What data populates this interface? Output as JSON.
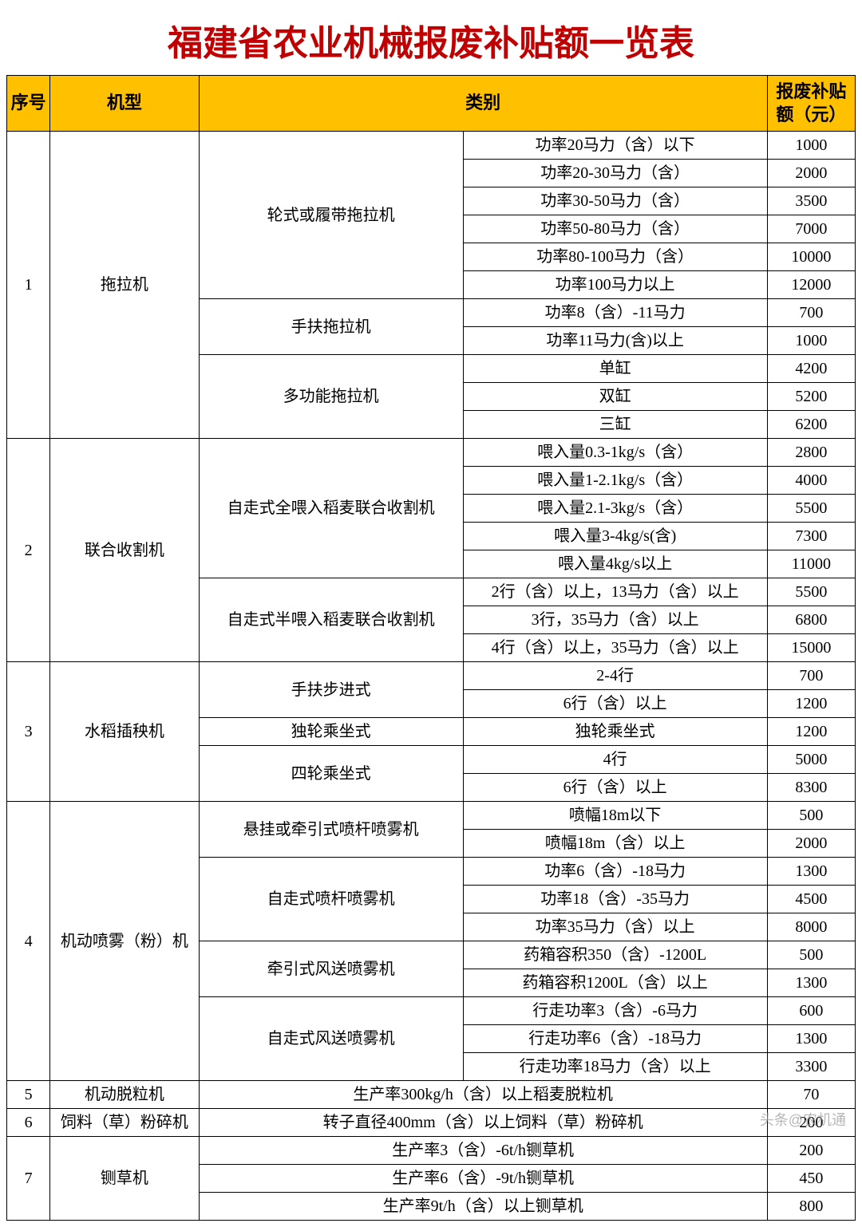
{
  "title": "福建省农业机械报废补贴额一览表",
  "headers": {
    "seq": "序号",
    "model": "机型",
    "category": "类别",
    "amount": "报废补贴额（元）"
  },
  "colors": {
    "title_color": "#c00000",
    "header_bg": "#ffc000",
    "border": "#000000",
    "text": "#000000",
    "background": "#ffffff"
  },
  "font": {
    "title_size": 44,
    "header_size": 22,
    "cell_size": 20,
    "family": "SimSun"
  },
  "groups": [
    {
      "seq": "1",
      "model": "拖拉机",
      "subs": [
        {
          "cat1": "轮式或履带拖拉机",
          "rows": [
            {
              "cat2": "功率20马力（含）以下",
              "amount": "1000"
            },
            {
              "cat2": "功率20-30马力（含）",
              "amount": "2000"
            },
            {
              "cat2": "功率30-50马力（含）",
              "amount": "3500"
            },
            {
              "cat2": "功率50-80马力（含）",
              "amount": "7000"
            },
            {
              "cat2": "功率80-100马力（含）",
              "amount": "10000"
            },
            {
              "cat2": "功率100马力以上",
              "amount": "12000"
            }
          ]
        },
        {
          "cat1": "手扶拖拉机",
          "rows": [
            {
              "cat2": "功率8（含）-11马力",
              "amount": "700"
            },
            {
              "cat2": "功率11马力(含)以上",
              "amount": "1000"
            }
          ]
        },
        {
          "cat1": "多功能拖拉机",
          "rows": [
            {
              "cat2": "单缸",
              "amount": "4200"
            },
            {
              "cat2": "双缸",
              "amount": "5200"
            },
            {
              "cat2": "三缸",
              "amount": "6200"
            }
          ]
        }
      ]
    },
    {
      "seq": "2",
      "model": "联合收割机",
      "subs": [
        {
          "cat1": "自走式全喂入稻麦联合收割机",
          "rows": [
            {
              "cat2": "喂入量0.3-1kg/s（含）",
              "amount": "2800"
            },
            {
              "cat2": "喂入量1-2.1kg/s（含）",
              "amount": "4000"
            },
            {
              "cat2": "喂入量2.1-3kg/s（含）",
              "amount": "5500"
            },
            {
              "cat2": "喂入量3-4kg/s(含)",
              "amount": "7300"
            },
            {
              "cat2": "喂入量4kg/s以上",
              "amount": "11000"
            }
          ]
        },
        {
          "cat1": "自走式半喂入稻麦联合收割机",
          "rows": [
            {
              "cat2": "2行（含）以上，13马力（含）以上",
              "amount": "5500"
            },
            {
              "cat2": "3行，35马力（含）以上",
              "amount": "6800"
            },
            {
              "cat2": "4行（含）以上，35马力（含）以上",
              "amount": "15000"
            }
          ]
        }
      ]
    },
    {
      "seq": "3",
      "model": "水稻插秧机",
      "subs": [
        {
          "cat1": "手扶步进式",
          "rows": [
            {
              "cat2": "2-4行",
              "amount": "700"
            },
            {
              "cat2": "6行（含）以上",
              "amount": "1200"
            }
          ]
        },
        {
          "cat1": "独轮乘坐式",
          "rows": [
            {
              "cat2": "独轮乘坐式",
              "amount": "1200"
            }
          ]
        },
        {
          "cat1": "四轮乘坐式",
          "rows": [
            {
              "cat2": "4行",
              "amount": "5000"
            },
            {
              "cat2": "6行（含）以上",
              "amount": "8300"
            }
          ]
        }
      ]
    },
    {
      "seq": "4",
      "model": "机动喷雾（粉）机",
      "subs": [
        {
          "cat1": "悬挂或牵引式喷杆喷雾机",
          "rows": [
            {
              "cat2": "喷幅18m以下",
              "amount": "500"
            },
            {
              "cat2": "喷幅18m（含）以上",
              "amount": "2000"
            }
          ]
        },
        {
          "cat1": "自走式喷杆喷雾机",
          "rows": [
            {
              "cat2": "功率6（含）-18马力",
              "amount": "1300"
            },
            {
              "cat2": "功率18（含）-35马力",
              "amount": "4500"
            },
            {
              "cat2": "功率35马力（含）以上",
              "amount": "8000"
            }
          ]
        },
        {
          "cat1": "牵引式风送喷雾机",
          "rows": [
            {
              "cat2": "药箱容积350（含）-1200L",
              "amount": "500"
            },
            {
              "cat2": "药箱容积1200L（含）以上",
              "amount": "1300"
            }
          ]
        },
        {
          "cat1": "自走式风送喷雾机",
          "rows": [
            {
              "cat2": "行走功率3（含）-6马力",
              "amount": "600"
            },
            {
              "cat2": "行走功率6（含）-18马力",
              "amount": "1300"
            },
            {
              "cat2": "行走功率18马力（含）以上",
              "amount": "3300"
            }
          ]
        }
      ]
    }
  ],
  "simple_rows": [
    {
      "seq": "5",
      "model": "机动脱粒机",
      "cat": "生产率300kg/h（含）以上稻麦脱粒机",
      "amount": "70"
    },
    {
      "seq": "6",
      "model": "饲料（草）粉碎机",
      "cat": "转子直径400mm（含）以上饲料（草）粉碎机",
      "amount": "200"
    }
  ],
  "group7": {
    "seq": "7",
    "model": "铡草机",
    "rows": [
      {
        "cat": "生产率3（含）-6t/h铡草机",
        "amount": "200"
      },
      {
        "cat": "生产率6（含）-9t/h铡草机",
        "amount": "450"
      },
      {
        "cat": "生产率9t/h（含）以上铡草机",
        "amount": "800"
      }
    ]
  },
  "watermark": "头条@农机通"
}
